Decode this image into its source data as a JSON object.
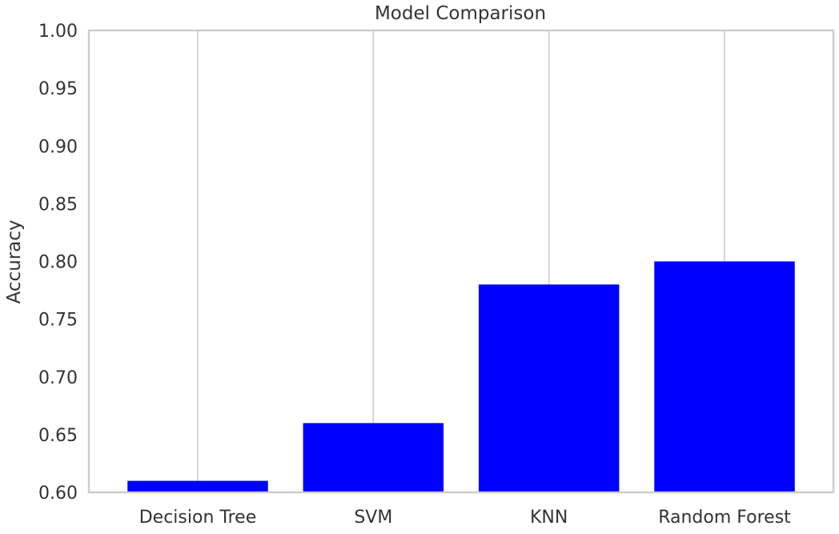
{
  "chart_data": {
    "type": "bar",
    "title": "Model Comparison",
    "xlabel": "",
    "ylabel": "Accuracy",
    "categories": [
      "Decision Tree",
      "SVM",
      "KNN",
      "Random Forest"
    ],
    "values": [
      0.61,
      0.66,
      0.78,
      0.8
    ],
    "ylim": [
      0.6,
      1.0
    ],
    "yticks": [
      "0.60",
      "0.65",
      "0.70",
      "0.75",
      "0.80",
      "0.85",
      "0.90",
      "0.95",
      "1.00"
    ],
    "bar_color": "#0000ff",
    "grid": "vertical gridlines at category positions",
    "legend": "none"
  }
}
